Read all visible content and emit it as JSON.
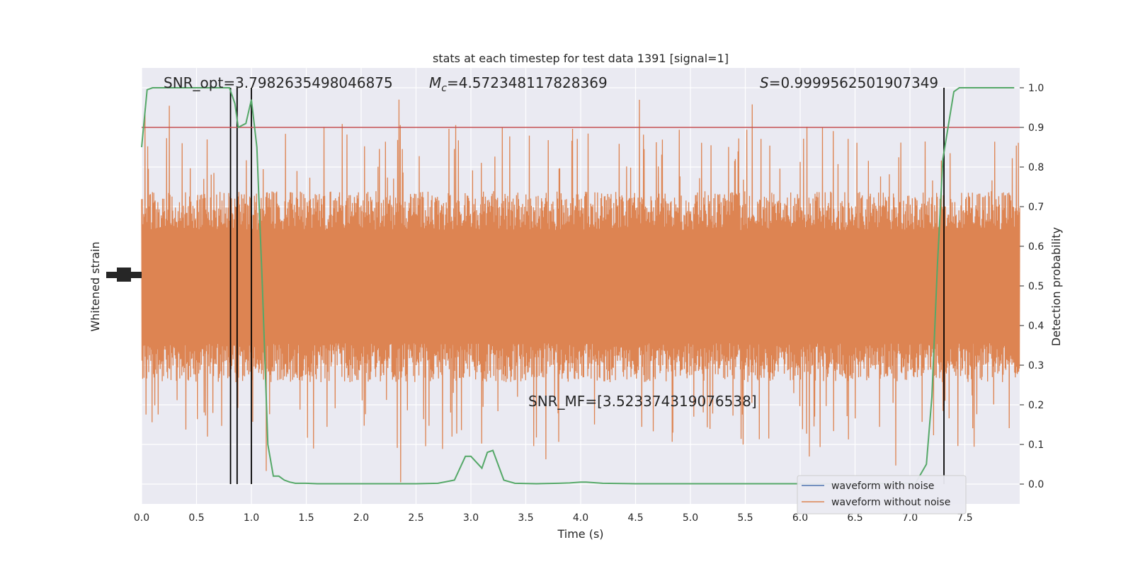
{
  "chart_data": {
    "type": "line",
    "title": "stats at each timestep for test data 1391 [signal=1]",
    "xlabel": "Time (s)",
    "ylabel_left": "Whitened strain",
    "ylabel_right": "Detection probability",
    "xlim": [
      0,
      8
    ],
    "ylim_right": [
      -0.05,
      1.05
    ],
    "grid": true,
    "legend_position": "lower-right",
    "x_ticks": [
      "0.0",
      "0.5",
      "1.0",
      "1.5",
      "2.0",
      "2.5",
      "3.0",
      "3.5",
      "4.0",
      "4.5",
      "5.0",
      "5.5",
      "6.0",
      "6.5",
      "7.0",
      "7.5"
    ],
    "y_ticks_right": [
      "0.0",
      "0.1",
      "0.2",
      "0.3",
      "0.4",
      "0.5",
      "0.6",
      "0.7",
      "0.8",
      "0.9",
      "1.0"
    ],
    "annotations": {
      "snr_opt": "SNR_opt=3.7982635498046875",
      "mc_symbol": "M",
      "mc_sub": "c",
      "mc_value": "=4.572348117828369",
      "s_symbol": "S",
      "s_value": "=0.9999562501907349",
      "snr_mf": "SNR_MF=[3.523374319076538]"
    },
    "threshold": 0.9,
    "vertical_markers": [
      0.81,
      0.87,
      1.0,
      7.31
    ],
    "series": [
      {
        "name": "waveform with noise",
        "color": "#4c72b0",
        "visible_in_plot": false
      },
      {
        "name": "waveform without noise",
        "color": "#dd8452",
        "values_description": "dense strain trace"
      },
      {
        "color": "#55a868",
        "axis": "right",
        "x": [
          0.0,
          0.05,
          0.1,
          0.2,
          0.3,
          0.4,
          0.5,
          0.6,
          0.7,
          0.8,
          0.85,
          0.88,
          0.95,
          1.0,
          1.05,
          1.1,
          1.15,
          1.2,
          1.25,
          1.3,
          1.35,
          1.4,
          1.5,
          1.6,
          1.7,
          1.8,
          2.0,
          2.5,
          2.7,
          2.85,
          2.95,
          3.0,
          3.1,
          3.15,
          3.2,
          3.3,
          3.4,
          3.6,
          3.8,
          3.9,
          4.0,
          4.05,
          4.2,
          4.5,
          5.0,
          5.5,
          6.0,
          6.5,
          7.0,
          7.05,
          7.15,
          7.2,
          7.25,
          7.3,
          7.4,
          7.45,
          7.5,
          7.6,
          7.8,
          7.95
        ],
        "y": [
          0.85,
          0.995,
          1.0,
          1.0,
          1.0,
          1.0,
          1.0,
          1.0,
          1.0,
          1.0,
          0.96,
          0.9,
          0.91,
          0.97,
          0.85,
          0.5,
          0.1,
          0.02,
          0.02,
          0.01,
          0.005,
          0.002,
          0.002,
          0.001,
          0.001,
          0.001,
          0.001,
          0.001,
          0.002,
          0.01,
          0.07,
          0.07,
          0.04,
          0.08,
          0.085,
          0.01,
          0.002,
          0.001,
          0.002,
          0.003,
          0.005,
          0.005,
          0.002,
          0.001,
          0.001,
          0.001,
          0.001,
          0.001,
          0.002,
          0.002,
          0.05,
          0.22,
          0.55,
          0.82,
          0.99,
          1.0,
          1.0,
          1.0,
          1.0,
          1.0
        ]
      },
      {
        "color": "#c44e52",
        "axis": "right",
        "y": [
          0.9,
          0.9
        ]
      }
    ]
  }
}
